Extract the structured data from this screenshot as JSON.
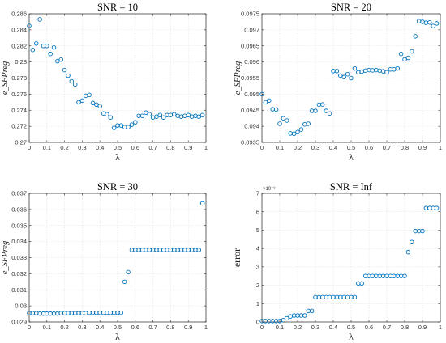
{
  "chart_data": [
    {
      "type": "scatter",
      "title": "SNR = 10",
      "xlabel": "λ",
      "ylabel": "e_SFPreg",
      "xlim": [
        0,
        1
      ],
      "ylim": [
        0.27,
        0.286
      ],
      "x_ticks": [
        "0",
        "0.1",
        "0.2",
        "0.3",
        "0.4",
        "0.5",
        "0.6",
        "0.7",
        "0.8",
        "0.9",
        "1"
      ],
      "y_ticks": [
        "0.27",
        "0.272",
        "0.274",
        "0.276",
        "0.278",
        "0.28",
        "0.282",
        "0.284",
        "0.286"
      ],
      "grid": true,
      "x": [
        0.0,
        0.02,
        0.04,
        0.06,
        0.08,
        0.1,
        0.12,
        0.14,
        0.16,
        0.18,
        0.2,
        0.22,
        0.24,
        0.26,
        0.28,
        0.3,
        0.32,
        0.34,
        0.36,
        0.38,
        0.4,
        0.42,
        0.44,
        0.46,
        0.48,
        0.5,
        0.52,
        0.54,
        0.56,
        0.58,
        0.6,
        0.62,
        0.64,
        0.66,
        0.68,
        0.7,
        0.72,
        0.74,
        0.76,
        0.78,
        0.8,
        0.82,
        0.84,
        0.86,
        0.88,
        0.9,
        0.92,
        0.94,
        0.96,
        0.98
      ],
      "y": [
        0.2845,
        0.2815,
        0.2823,
        0.2853,
        0.282,
        0.282,
        0.281,
        0.2818,
        0.2801,
        0.2803,
        0.279,
        0.2783,
        0.2776,
        0.2772,
        0.275,
        0.2752,
        0.2758,
        0.2759,
        0.2749,
        0.2747,
        0.2745,
        0.2736,
        0.2735,
        0.2731,
        0.2718,
        0.2721,
        0.2721,
        0.2719,
        0.2719,
        0.2722,
        0.2725,
        0.2733,
        0.2733,
        0.2737,
        0.2735,
        0.2731,
        0.2732,
        0.2734,
        0.2731,
        0.2734,
        0.2734,
        0.2735,
        0.2733,
        0.2732,
        0.2733,
        0.2734,
        0.2732,
        0.2733,
        0.2732,
        0.2734
      ]
    },
    {
      "type": "scatter",
      "title": "SNR = 20",
      "xlabel": "λ",
      "ylabel": "e_SFPreg",
      "xlim": [
        0,
        1
      ],
      "ylim": [
        0.0935,
        0.0975
      ],
      "x_ticks": [
        "0",
        "0.1",
        "0.2",
        "0.3",
        "0.4",
        "0.5",
        "0.6",
        "0.7",
        "0.8",
        "0.9",
        "1"
      ],
      "y_ticks": [
        "0.0935",
        "0.094",
        "0.0945",
        "0.095",
        "0.0955",
        "0.096",
        "0.0965",
        "0.097",
        "0.0975"
      ],
      "grid": true,
      "x": [
        0.0,
        0.02,
        0.04,
        0.06,
        0.08,
        0.1,
        0.12,
        0.14,
        0.16,
        0.18,
        0.2,
        0.22,
        0.24,
        0.26,
        0.28,
        0.3,
        0.32,
        0.34,
        0.36,
        0.38,
        0.4,
        0.42,
        0.44,
        0.46,
        0.48,
        0.5,
        0.52,
        0.54,
        0.56,
        0.58,
        0.6,
        0.62,
        0.64,
        0.66,
        0.68,
        0.7,
        0.72,
        0.74,
        0.76,
        0.78,
        0.8,
        0.82,
        0.84,
        0.86,
        0.88,
        0.9,
        0.92,
        0.94,
        0.96,
        0.98
      ],
      "y": [
        0.095,
        0.09475,
        0.0948,
        0.09453,
        0.09452,
        0.09408,
        0.09425,
        0.09418,
        0.09378,
        0.09377,
        0.09382,
        0.0939,
        0.09406,
        0.09408,
        0.09448,
        0.09448,
        0.09467,
        0.09468,
        0.09448,
        0.0944,
        0.09572,
        0.09572,
        0.09558,
        0.09553,
        0.09562,
        0.0955,
        0.0958,
        0.09568,
        0.0957,
        0.09573,
        0.09575,
        0.09574,
        0.09575,
        0.09573,
        0.09571,
        0.09568,
        0.09577,
        0.09577,
        0.0958,
        0.09625,
        0.09608,
        0.09613,
        0.09633,
        0.0968,
        0.09727,
        0.09725,
        0.09722,
        0.09723,
        0.09712,
        0.0972
      ]
    },
    {
      "type": "scatter",
      "title": "SNR = 30",
      "xlabel": "λ",
      "ylabel": "e_SFPreg",
      "xlim": [
        0,
        1
      ],
      "ylim": [
        0.029,
        0.037
      ],
      "x_ticks": [
        "0",
        "0.1",
        "0.2",
        "0.3",
        "0.4",
        "0.5",
        "0.6",
        "0.7",
        "0.8",
        "0.9",
        "1"
      ],
      "y_ticks": [
        "0.029",
        "0.03",
        "0.031",
        "0.032",
        "0.033",
        "0.034",
        "0.035",
        "0.036",
        "0.037"
      ],
      "grid": true,
      "x": [
        0.0,
        0.02,
        0.04,
        0.06,
        0.08,
        0.1,
        0.12,
        0.14,
        0.16,
        0.18,
        0.2,
        0.22,
        0.24,
        0.26,
        0.28,
        0.3,
        0.32,
        0.34,
        0.36,
        0.38,
        0.4,
        0.42,
        0.44,
        0.46,
        0.48,
        0.5,
        0.52,
        0.54,
        0.56,
        0.58,
        0.6,
        0.62,
        0.64,
        0.66,
        0.68,
        0.7,
        0.72,
        0.74,
        0.76,
        0.78,
        0.8,
        0.82,
        0.84,
        0.86,
        0.88,
        0.9,
        0.92,
        0.94,
        0.96,
        0.98
      ],
      "y": [
        0.02955,
        0.02955,
        0.02955,
        0.02952,
        0.02952,
        0.02952,
        0.02952,
        0.02952,
        0.02952,
        0.02955,
        0.02955,
        0.02955,
        0.02955,
        0.02955,
        0.02955,
        0.02955,
        0.02955,
        0.02957,
        0.02957,
        0.02957,
        0.02957,
        0.02957,
        0.02957,
        0.02957,
        0.02957,
        0.02957,
        0.02957,
        0.0315,
        0.0321,
        0.03348,
        0.03348,
        0.03348,
        0.03348,
        0.03348,
        0.03348,
        0.03348,
        0.03348,
        0.03348,
        0.03348,
        0.03348,
        0.03348,
        0.03348,
        0.03348,
        0.03348,
        0.03348,
        0.03348,
        0.03348,
        0.03348,
        0.03348,
        0.03638
      ]
    },
    {
      "type": "scatter",
      "title": "SNR = Inf",
      "xlabel": "λ",
      "ylabel": "error",
      "xlim": [
        0,
        1
      ],
      "ylim": [
        0,
        7
      ],
      "y_exponent": "×10⁻³",
      "x_ticks": [
        "0",
        "0.1",
        "0.2",
        "0.3",
        "0.4",
        "0.5",
        "0.6",
        "0.7",
        "0.8",
        "0.9",
        "1"
      ],
      "y_ticks": [
        "0",
        "1",
        "2",
        "3",
        "4",
        "5",
        "6",
        "7"
      ],
      "grid": true,
      "x": [
        0.0,
        0.02,
        0.04,
        0.06,
        0.08,
        0.1,
        0.12,
        0.14,
        0.16,
        0.18,
        0.2,
        0.22,
        0.24,
        0.26,
        0.28,
        0.3,
        0.32,
        0.34,
        0.36,
        0.38,
        0.4,
        0.42,
        0.44,
        0.46,
        0.48,
        0.5,
        0.52,
        0.54,
        0.56,
        0.58,
        0.6,
        0.62,
        0.64,
        0.66,
        0.68,
        0.7,
        0.72,
        0.74,
        0.76,
        0.78,
        0.8,
        0.82,
        0.84,
        0.86,
        0.88,
        0.9,
        0.92,
        0.94,
        0.96,
        0.98
      ],
      "y": [
        0.05,
        0.05,
        0.05,
        0.05,
        0.05,
        0.05,
        0.1,
        0.2,
        0.3,
        0.35,
        0.35,
        0.35,
        0.35,
        0.6,
        0.6,
        1.35,
        1.35,
        1.35,
        1.35,
        1.35,
        1.35,
        1.35,
        1.35,
        1.35,
        1.35,
        1.35,
        1.35,
        2.1,
        2.1,
        2.5,
        2.5,
        2.5,
        2.5,
        2.5,
        2.5,
        2.5,
        2.5,
        2.5,
        2.5,
        2.5,
        2.5,
        3.8,
        4.35,
        4.95,
        4.95,
        4.95,
        6.2,
        6.2,
        6.2,
        6.2
      ]
    }
  ]
}
